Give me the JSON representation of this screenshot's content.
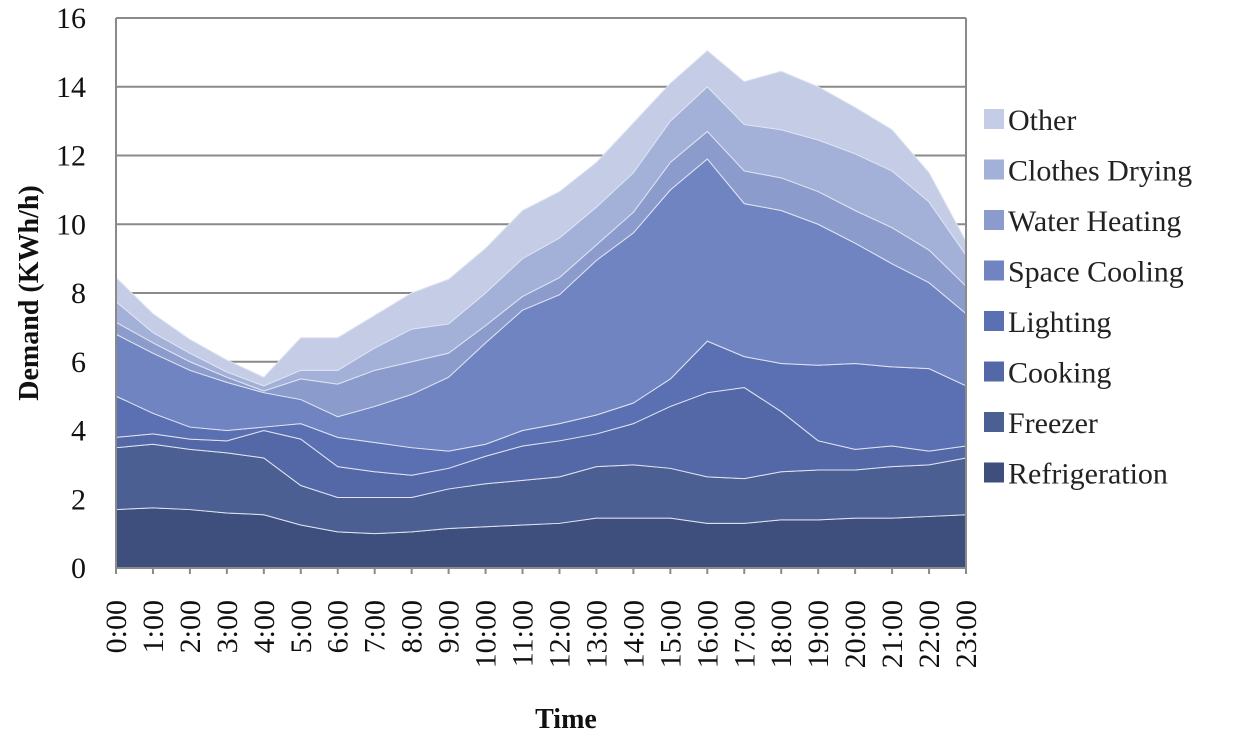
{
  "chart_data": {
    "type": "area",
    "stacked": true,
    "title": "",
    "xlabel": "Time",
    "ylabel": "Demand (KWh/h)",
    "ylim": [
      0,
      16
    ],
    "yticks": [
      0,
      2,
      4,
      6,
      8,
      10,
      12,
      14,
      16
    ],
    "grid": "horizontal",
    "legend_position": "right",
    "categories": [
      "0:00",
      "1:00",
      "2:00",
      "3:00",
      "4:00",
      "5:00",
      "6:00",
      "7:00",
      "8:00",
      "9:00",
      "10:00",
      "11:00",
      "12:00",
      "13:00",
      "14:00",
      "15:00",
      "16:00",
      "17:00",
      "18:00",
      "19:00",
      "20:00",
      "21:00",
      "22:00",
      "23:00"
    ],
    "series": [
      {
        "name": "Refrigeration",
        "color": "#3e4f7e",
        "values": [
          1.7,
          1.75,
          1.7,
          1.6,
          1.55,
          1.25,
          1.05,
          1.0,
          1.05,
          1.15,
          1.2,
          1.25,
          1.3,
          1.45,
          1.45,
          1.45,
          1.3,
          1.3,
          1.4,
          1.4,
          1.45,
          1.45,
          1.5,
          1.55
        ]
      },
      {
        "name": "Freezer",
        "color": "#4b5f93",
        "values": [
          1.8,
          1.85,
          1.75,
          1.75,
          1.65,
          1.15,
          1.0,
          1.05,
          1.0,
          1.15,
          1.25,
          1.3,
          1.35,
          1.5,
          1.55,
          1.45,
          1.35,
          1.3,
          1.4,
          1.45,
          1.4,
          1.5,
          1.5,
          1.65
        ]
      },
      {
        "name": "Cooking",
        "color": "#5468a8",
        "values": [
          0.3,
          0.3,
          0.3,
          0.35,
          0.8,
          1.35,
          0.9,
          0.75,
          0.65,
          0.6,
          0.8,
          1.0,
          1.05,
          0.95,
          1.2,
          1.8,
          2.45,
          2.65,
          1.75,
          0.85,
          0.6,
          0.6,
          0.4,
          0.35
        ]
      },
      {
        "name": "Lighting",
        "color": "#5b70b2",
        "values": [
          1.2,
          0.6,
          0.35,
          0.3,
          0.1,
          0.45,
          0.85,
          0.85,
          0.8,
          0.5,
          0.35,
          0.45,
          0.5,
          0.55,
          0.6,
          0.8,
          1.5,
          0.9,
          1.4,
          2.2,
          2.5,
          2.3,
          2.4,
          1.75
        ]
      },
      {
        "name": "Space Cooling",
        "color": "#6f84c0",
        "values": [
          1.8,
          1.75,
          1.65,
          1.4,
          1.0,
          0.7,
          0.6,
          1.05,
          1.55,
          2.15,
          2.95,
          3.5,
          3.75,
          4.5,
          4.95,
          5.5,
          5.3,
          4.45,
          4.45,
          4.1,
          3.5,
          3.0,
          2.5,
          2.1
        ]
      },
      {
        "name": "Water Heating",
        "color": "#8b9bcc",
        "values": [
          0.35,
          0.3,
          0.25,
          0.15,
          0.05,
          0.6,
          0.95,
          1.05,
          0.95,
          0.7,
          0.5,
          0.4,
          0.5,
          0.45,
          0.6,
          0.8,
          0.8,
          0.95,
          0.95,
          0.95,
          0.95,
          1.05,
          0.95,
          0.8
        ]
      },
      {
        "name": "Clothes Drying",
        "color": "#a3b0d8",
        "values": [
          0.6,
          0.3,
          0.25,
          0.15,
          0.15,
          0.25,
          0.4,
          0.65,
          0.95,
          0.85,
          0.95,
          1.1,
          1.15,
          1.1,
          1.15,
          1.2,
          1.3,
          1.35,
          1.4,
          1.5,
          1.65,
          1.65,
          1.4,
          0.9
        ]
      },
      {
        "name": "Other",
        "color": "#c4cce6",
        "values": [
          0.7,
          0.55,
          0.4,
          0.35,
          0.25,
          0.95,
          0.95,
          0.95,
          1.05,
          1.3,
          1.3,
          1.4,
          1.35,
          1.3,
          1.45,
          1.1,
          1.05,
          1.25,
          1.7,
          1.55,
          1.35,
          1.2,
          0.85,
          0.4
        ]
      }
    ]
  }
}
